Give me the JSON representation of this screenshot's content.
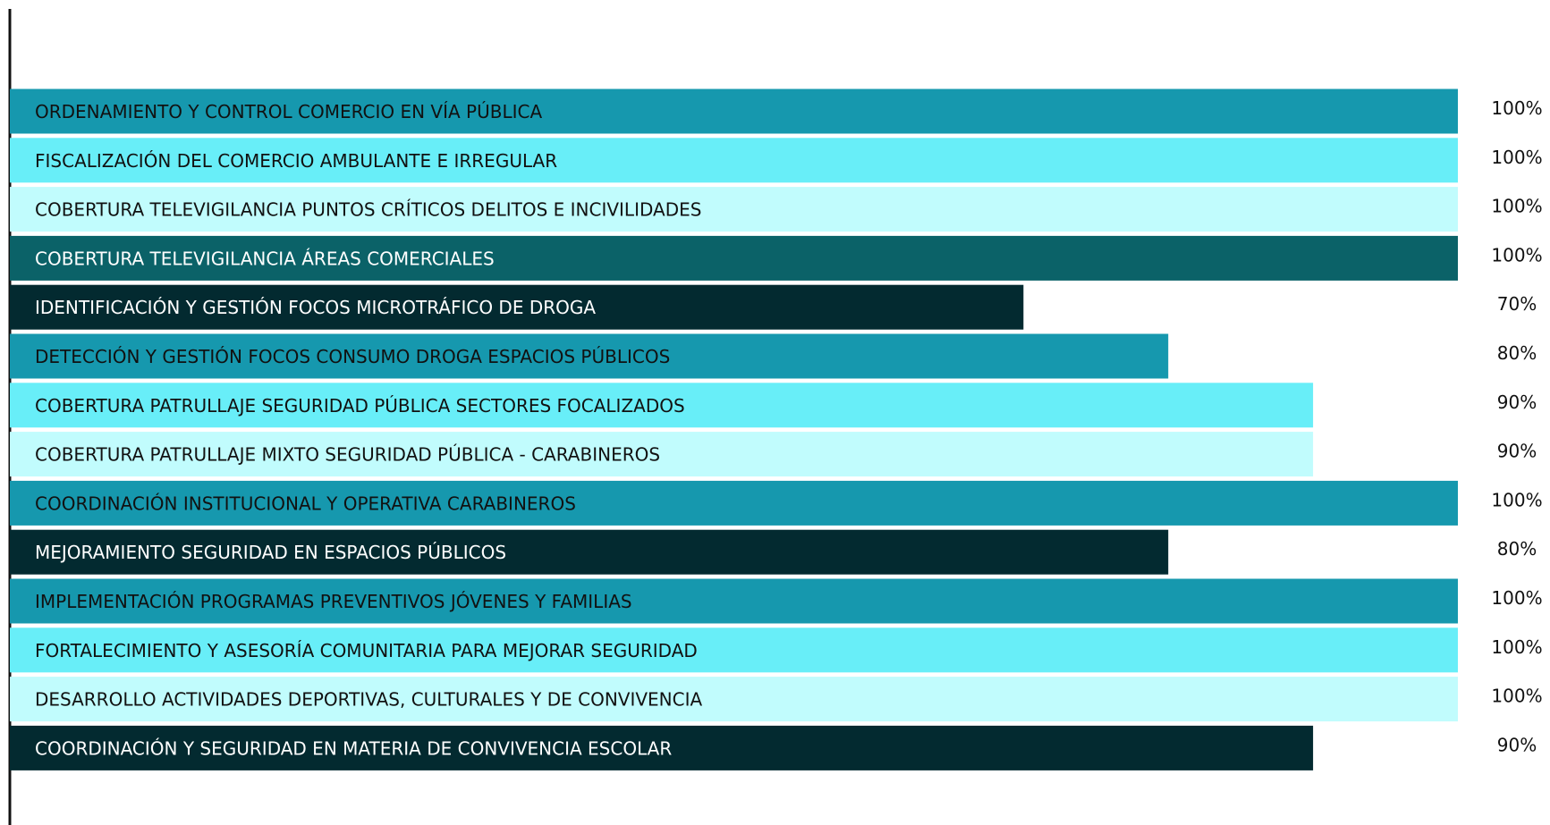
{
  "chart_data": {
    "type": "bar",
    "orientation": "horizontal",
    "categories": [
      "ORDENAMIENTO Y CONTROL COMERCIO EN VÍA PÚBLICA",
      "FISCALIZACIÓN DEL COMERCIO AMBULANTE E IRREGULAR",
      "COBERTURA TELEVIGILANCIA PUNTOS CRÍTICOS DELITOS E INCIVILIDADES",
      "COBERTURA TELEVIGILANCIA ÁREAS COMERCIALES",
      "IDENTIFICACIÓN Y GESTIÓN FOCOS MICROTRÁFICO DE DROGA",
      "DETECCIÓN Y GESTIÓN FOCOS CONSUMO DROGA ESPACIOS PÚBLICOS",
      "COBERTURA PATRULLAJE SEGURIDAD PÚBLICA SECTORES FOCALIZADOS",
      "COBERTURA PATRULLAJE MIXTO SEGURIDAD PÚBLICA -  CARABINEROS",
      "COORDINACIÓN INSTITUCIONAL Y OPERATIVA CARABINEROS",
      "MEJORAMIENTO  SEGURIDAD EN  ESPACIOS PÚBLICOS",
      "IMPLEMENTACIÓN PROGRAMAS PREVENTIVOS JÓVENES Y FAMILIAS",
      "FORTALECIMIENTO Y ASESORÍA COMUNITARIA PARA MEJORAR SEGURIDAD",
      "DESARROLLO ACTIVIDADES DEPORTIVAS, CULTURALES Y DE CONVIVENCIA",
      "COORDINACIÓN Y SEGURIDAD EN MATERIA DE CONVIVENCIA ESCOLAR"
    ],
    "values": [
      100,
      100,
      100,
      100,
      70,
      80,
      90,
      90,
      100,
      80,
      100,
      100,
      100,
      90
    ],
    "value_labels": [
      "100%",
      "100%",
      "100%",
      "100%",
      "70%",
      "80%",
      "90%",
      "90%",
      "100%",
      "80%",
      "100%",
      "100%",
      "100%",
      "90%"
    ],
    "colors": [
      "#1698ae",
      "#68eef8",
      "#c1fcfd",
      "#0b6268",
      "#032a30",
      "#1698ae",
      "#68eef8",
      "#c1fcfd",
      "#1698ae",
      "#032a30",
      "#1698ae",
      "#68eef8",
      "#c1fcfd",
      "#032a30"
    ],
    "xlim": [
      0,
      100
    ]
  }
}
